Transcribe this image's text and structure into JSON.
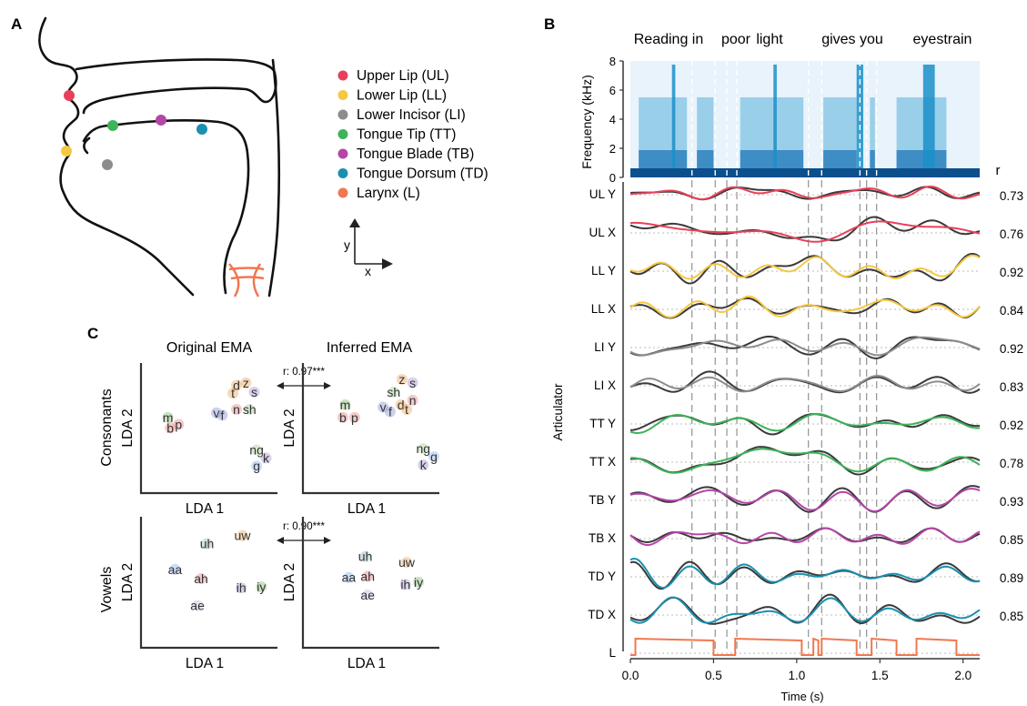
{
  "panels": {
    "a": "A",
    "b": "B",
    "c": "C"
  },
  "articulators": [
    {
      "name": "Upper Lip (UL)",
      "color": "#e8405a"
    },
    {
      "name": "Lower Lip (LL)",
      "color": "#f5c842"
    },
    {
      "name": "Lower Incisor (LI)",
      "color": "#8c8c8c"
    },
    {
      "name": "Tongue Tip (TT)",
      "color": "#3db35a"
    },
    {
      "name": "Tongue Blade (TB)",
      "color": "#b545a8"
    },
    {
      "name": "Tongue Dorsum (TD)",
      "color": "#1a8fb0"
    },
    {
      "name": "Larynx (L)",
      "color": "#f07850"
    }
  ],
  "axes_glyph": {
    "y": "y",
    "x": "x"
  },
  "lda": {
    "col_titles": [
      "Original EMA",
      "Inferred EMA"
    ],
    "row_titles": [
      "Consonants",
      "Vowels"
    ],
    "xlabel": "LDA 1",
    "ylabel": "LDA 2",
    "corr": [
      "r: 0.97***",
      "r: 0.90***"
    ]
  },
  "chart_data": [
    {
      "type": "line",
      "sentence": [
        "Reading in",
        "poor",
        "light",
        "gives you",
        "eyestrain"
      ],
      "spectrogram": {
        "ylabel": "Frequency (kHz)",
        "yticks": [
          "0",
          "2",
          "4",
          "6",
          "8"
        ],
        "ylim": [
          0,
          8
        ]
      },
      "xlabel": "Time (s)",
      "xticks": [
        "0.0",
        "0.5",
        "1.0",
        "1.5",
        "2.0"
      ],
      "xlim": [
        0,
        2.1
      ],
      "ylabel": "Articulator",
      "r_header": "r",
      "boundaries": [
        0.37,
        0.51,
        0.58,
        0.64,
        1.07,
        1.15,
        1.38,
        1.42,
        1.48
      ],
      "rows": [
        {
          "label": "UL Y",
          "r": "0.73",
          "color": "#e8405a"
        },
        {
          "label": "UL X",
          "r": "0.76",
          "color": "#e8405a"
        },
        {
          "label": "LL Y",
          "r": "0.92",
          "color": "#f5c842"
        },
        {
          "label": "LL X",
          "r": "0.84",
          "color": "#f5c842"
        },
        {
          "label": "LI Y",
          "r": "0.92",
          "color": "#8c8c8c"
        },
        {
          "label": "LI X",
          "r": "0.83",
          "color": "#8c8c8c"
        },
        {
          "label": "TT Y",
          "r": "0.92",
          "color": "#3db35a"
        },
        {
          "label": "TT X",
          "r": "0.78",
          "color": "#3db35a"
        },
        {
          "label": "TB Y",
          "r": "0.93",
          "color": "#b545a8"
        },
        {
          "label": "TB X",
          "r": "0.85",
          "color": "#b545a8"
        },
        {
          "label": "TD Y",
          "r": "0.89",
          "color": "#1a8fb0"
        },
        {
          "label": "TD X",
          "r": "0.85",
          "color": "#1a8fb0"
        },
        {
          "label": "L",
          "r": "",
          "color": "#f07850"
        }
      ]
    },
    {
      "type": "scatter",
      "title": "Original EMA",
      "group": "Consonants",
      "xlabel": "LDA 1",
      "ylabel": "LDA 2",
      "points": [
        {
          "label": "m",
          "x": 0.12,
          "y": 0.56,
          "color": "#6aa84f"
        },
        {
          "label": "b",
          "x": 0.14,
          "y": 0.47,
          "color": "#e06666"
        },
        {
          "label": "p",
          "x": 0.21,
          "y": 0.5,
          "color": "#e06666"
        },
        {
          "label": "v",
          "x": 0.53,
          "y": 0.6,
          "color": "#6d7ec9"
        },
        {
          "label": "f",
          "x": 0.58,
          "y": 0.58,
          "color": "#6d7ec9"
        },
        {
          "label": "d",
          "x": 0.7,
          "y": 0.84,
          "color": "#e69138"
        },
        {
          "label": "z",
          "x": 0.78,
          "y": 0.86,
          "color": "#e69138"
        },
        {
          "label": "t",
          "x": 0.67,
          "y": 0.77,
          "color": "#e69138"
        },
        {
          "label": "s",
          "x": 0.85,
          "y": 0.78,
          "color": "#8e7cc3"
        },
        {
          "label": "n",
          "x": 0.7,
          "y": 0.63,
          "color": "#e06666"
        },
        {
          "label": "sh",
          "x": 0.81,
          "y": 0.63,
          "color": "#93c47d"
        },
        {
          "label": "ng",
          "x": 0.87,
          "y": 0.28,
          "color": "#93c47d"
        },
        {
          "label": "k",
          "x": 0.95,
          "y": 0.21,
          "color": "#8e7cc3"
        },
        {
          "label": "g",
          "x": 0.87,
          "y": 0.14,
          "color": "#6d9eeb"
        }
      ]
    },
    {
      "type": "scatter",
      "title": "Inferred EMA",
      "group": "Consonants",
      "xlabel": "LDA 1",
      "ylabel": "LDA 2",
      "points": [
        {
          "label": "m",
          "x": 0.25,
          "y": 0.67,
          "color": "#6aa84f"
        },
        {
          "label": "b",
          "x": 0.23,
          "y": 0.56,
          "color": "#e06666"
        },
        {
          "label": "p",
          "x": 0.33,
          "y": 0.56,
          "color": "#e06666"
        },
        {
          "label": "z",
          "x": 0.73,
          "y": 0.89,
          "color": "#e69138"
        },
        {
          "label": "s",
          "x": 0.82,
          "y": 0.86,
          "color": "#8e7cc3"
        },
        {
          "label": "sh",
          "x": 0.66,
          "y": 0.78,
          "color": "#93c47d"
        },
        {
          "label": "n",
          "x": 0.82,
          "y": 0.71,
          "color": "#e06666"
        },
        {
          "label": "v",
          "x": 0.57,
          "y": 0.65,
          "color": "#6d7ec9"
        },
        {
          "label": "f",
          "x": 0.63,
          "y": 0.61,
          "color": "#6d7ec9"
        },
        {
          "label": "d",
          "x": 0.72,
          "y": 0.67,
          "color": "#e69138"
        },
        {
          "label": "t",
          "x": 0.77,
          "y": 0.63,
          "color": "#e69138"
        },
        {
          "label": "ng",
          "x": 0.91,
          "y": 0.29,
          "color": "#93c47d"
        },
        {
          "label": "k",
          "x": 0.91,
          "y": 0.15,
          "color": "#8e7cc3"
        },
        {
          "label": "g",
          "x": 1.0,
          "y": 0.22,
          "color": "#6d9eeb"
        }
      ]
    },
    {
      "type": "scatter",
      "title": "Original EMA",
      "group": "Vowels",
      "xlabel": "LDA 1",
      "ylabel": "LDA 2",
      "points": [
        {
          "label": "uh",
          "x": 0.45,
          "y": 0.8,
          "color": "#76a5af"
        },
        {
          "label": "uw",
          "x": 0.75,
          "y": 0.87,
          "color": "#e69138"
        },
        {
          "label": "aa",
          "x": 0.18,
          "y": 0.58,
          "color": "#6d9eeb"
        },
        {
          "label": "ah",
          "x": 0.4,
          "y": 0.5,
          "color": "#e06666"
        },
        {
          "label": "ih",
          "x": 0.74,
          "y": 0.42,
          "color": "#8e7cc3"
        },
        {
          "label": "iy",
          "x": 0.91,
          "y": 0.43,
          "color": "#6aa84f"
        },
        {
          "label": "ae",
          "x": 0.37,
          "y": 0.27,
          "color": "#b4a7d6"
        }
      ]
    },
    {
      "type": "scatter",
      "title": "Inferred EMA",
      "group": "Vowels",
      "xlabel": "LDA 1",
      "ylabel": "LDA 2",
      "points": [
        {
          "label": "uh",
          "x": 0.42,
          "y": 0.69,
          "color": "#76a5af"
        },
        {
          "label": "uw",
          "x": 0.77,
          "y": 0.64,
          "color": "#e69138"
        },
        {
          "label": "aa",
          "x": 0.28,
          "y": 0.51,
          "color": "#6d9eeb"
        },
        {
          "label": "ah",
          "x": 0.44,
          "y": 0.52,
          "color": "#e06666"
        },
        {
          "label": "ih",
          "x": 0.76,
          "y": 0.45,
          "color": "#8e7cc3"
        },
        {
          "label": "iy",
          "x": 0.87,
          "y": 0.47,
          "color": "#6aa84f"
        },
        {
          "label": "ae",
          "x": 0.44,
          "y": 0.36,
          "color": "#b4a7d6"
        }
      ]
    }
  ]
}
